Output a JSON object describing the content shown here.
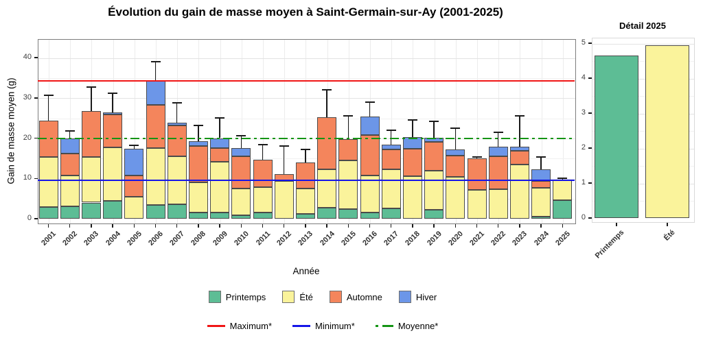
{
  "chart_data": [
    {
      "type": "bar",
      "stacked": true,
      "title": "Évolution du gain de masse moyen à Saint-Germain-sur-Ay (2001-2025)",
      "xlabel": "Année",
      "ylabel": "Gain de masse moyen (g)",
      "categories": [
        "2001",
        "2002",
        "2003",
        "2004",
        "2005",
        "2006",
        "2007",
        "2008",
        "2009",
        "2010",
        "2011",
        "2012",
        "2013",
        "2014",
        "2015",
        "2016",
        "2017",
        "2018",
        "2019",
        "2020",
        "2021",
        "2022",
        "2023",
        "2024",
        "2025"
      ],
      "series": [
        {
          "name": "Printemps",
          "color": "#5DBD95",
          "values": [
            2.9,
            3.0,
            4.0,
            4.5,
            0,
            3.4,
            3.6,
            1.5,
            1.6,
            0.9,
            1.5,
            0,
            1.2,
            2.8,
            2.4,
            1.5,
            2.6,
            0,
            2.2,
            0,
            0,
            0,
            0,
            0.5,
            4.65
          ]
        },
        {
          "name": "Été",
          "color": "#FAF39B",
          "values": [
            12.5,
            7.7,
            11.4,
            13.2,
            5.4,
            14.1,
            11.9,
            7.6,
            12.5,
            6.6,
            6.4,
            9.3,
            6.3,
            9.4,
            12.1,
            9.2,
            9.6,
            10.5,
            9.8,
            10.4,
            7.2,
            7.3,
            13.4,
            7.1,
            4.95
          ]
        },
        {
          "name": "Automne",
          "color": "#F4855C",
          "values": [
            9.0,
            5.4,
            11.4,
            8.2,
            5.3,
            10.7,
            7.7,
            8.9,
            3.4,
            8.0,
            6.8,
            1.7,
            6.4,
            13.0,
            5.2,
            10.0,
            5.0,
            6.8,
            7.0,
            5.2,
            7.8,
            8.2,
            3.5,
            1.7,
            0
          ]
        },
        {
          "name": "Hiver",
          "color": "#6C96E8",
          "values": [
            0,
            3.8,
            0,
            0.4,
            6.6,
            6.0,
            0.7,
            1.2,
            2.5,
            2.0,
            0,
            0,
            0,
            0,
            0,
            4.7,
            1.2,
            3.0,
            1.1,
            1.6,
            0,
            2.3,
            1.0,
            2.9,
            0
          ]
        }
      ],
      "error_bar_tops": [
        30.6,
        21.8,
        32.7,
        31.2,
        18.2,
        38.9,
        28.7,
        23.2,
        25.1,
        20.6,
        18.4,
        18.0,
        17.2,
        32.0,
        25.5,
        29.0,
        22.0,
        24.5,
        24.2,
        22.4,
        15.3,
        21.4,
        25.5,
        15.3,
        10.0
      ],
      "ref_lines": [
        {
          "label": "Maximum*",
          "value": 34.2,
          "color": "#f01515",
          "style": "solid"
        },
        {
          "label": "Minimum*",
          "value": 9.5,
          "color": "#1515e8",
          "style": "solid"
        },
        {
          "label": "Moyenne*",
          "value": 20.0,
          "color": "#149414",
          "style": "dash-dot"
        }
      ],
      "ylim": [
        0,
        44.6
      ],
      "yticks": [
        0,
        10,
        20,
        30,
        40
      ],
      "grid": true,
      "legend_position": "bottom"
    },
    {
      "type": "bar",
      "title": "Détail 2025",
      "categories": [
        "Printemps",
        "Été"
      ],
      "values": [
        4.65,
        4.95
      ],
      "colors": [
        "#5DBD95",
        "#FAF39B"
      ],
      "ylim": [
        0,
        5.16
      ],
      "yticks": [
        0,
        1,
        2,
        3,
        4,
        5
      ],
      "grid": true
    }
  ]
}
